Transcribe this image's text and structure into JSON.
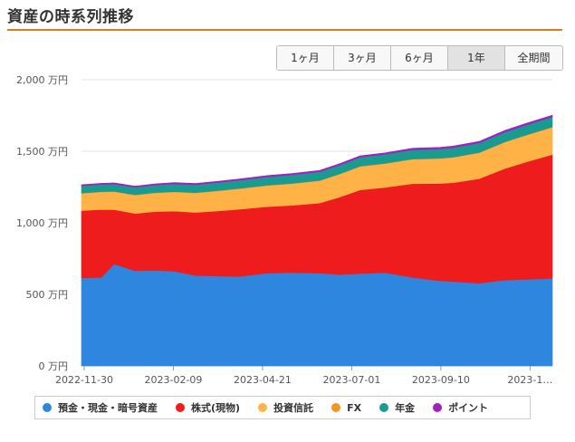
{
  "page": {
    "title": "資産の時系列推移"
  },
  "range_buttons": [
    {
      "label": "1ヶ月",
      "active": false
    },
    {
      "label": "3ヶ月",
      "active": false
    },
    {
      "label": "6ヶ月",
      "active": false
    },
    {
      "label": "1年",
      "active": true
    },
    {
      "label": "全期間",
      "active": false
    }
  ],
  "chart_data": {
    "type": "area",
    "stacked": true,
    "y_unit": "万円",
    "ylim": [
      0,
      2000
    ],
    "y_ticks": [
      {
        "value": 0,
        "label": "0 万円"
      },
      {
        "value": 500,
        "label": "500 万円"
      },
      {
        "value": 1000,
        "label": "1,000 万円"
      },
      {
        "value": 1500,
        "label": "1,500 万円"
      },
      {
        "value": 2000,
        "label": "2,000 万円"
      }
    ],
    "x_ticks": [
      "2022-11-30",
      "2023-02-09",
      "2023-04-21",
      "2023-07-01",
      "2023-09-10",
      "2023-1…"
    ],
    "x_start": "2022-11-30",
    "x_end": "2023-11-25",
    "grid": true,
    "legend_position": "bottom",
    "x": [
      "2022-11-30",
      "2022-12-15",
      "2022-12-25",
      "2023-01-10",
      "2023-01-25",
      "2023-02-09",
      "2023-02-25",
      "2023-03-15",
      "2023-03-31",
      "2023-04-21",
      "2023-05-10",
      "2023-05-31",
      "2023-06-15",
      "2023-07-01",
      "2023-07-20",
      "2023-08-10",
      "2023-08-31",
      "2023-09-10",
      "2023-09-30",
      "2023-10-20",
      "2023-11-05",
      "2023-11-25"
    ],
    "series": [
      {
        "name": "預金・現金・暗号資産",
        "color": "#2e86de",
        "values": [
          615,
          618,
          712,
          665,
          668,
          662,
          632,
          628,
          625,
          648,
          652,
          648,
          638,
          645,
          652,
          618,
          595,
          590,
          578,
          600,
          605,
          612
        ]
      },
      {
        "name": "株式(現物)",
        "color": "#ee1c1c",
        "values": [
          470,
          475,
          380,
          400,
          410,
          420,
          440,
          455,
          470,
          465,
          470,
          490,
          540,
          585,
          595,
          655,
          680,
          690,
          730,
          780,
          820,
          865
        ]
      },
      {
        "name": "投資信託",
        "color": "#ffb347",
        "values": [
          120,
          122,
          125,
          128,
          130,
          133,
          136,
          140,
          143,
          147,
          151,
          155,
          160,
          163,
          166,
          170,
          173,
          176,
          180,
          184,
          186,
          190
        ]
      },
      {
        "name": "FX",
        "color": "#f7931e",
        "values": [
          3,
          3,
          3,
          3,
          3,
          3,
          3,
          3,
          3,
          3,
          3,
          3,
          3,
          3,
          3,
          3,
          3,
          3,
          3,
          3,
          3,
          3
        ]
      },
      {
        "name": "年金",
        "color": "#1a9b8f",
        "values": [
          50,
          50,
          51,
          52,
          53,
          54,
          55,
          56,
          57,
          58,
          59,
          60,
          61,
          62,
          63,
          64,
          65,
          66,
          67,
          68,
          69,
          70
        ]
      },
      {
        "name": "ポイント",
        "color": "#a020c0",
        "values": [
          8,
          8,
          8,
          8,
          8,
          9,
          9,
          9,
          9,
          9,
          10,
          10,
          10,
          10,
          10,
          11,
          11,
          11,
          11,
          12,
          12,
          12
        ]
      }
    ]
  }
}
